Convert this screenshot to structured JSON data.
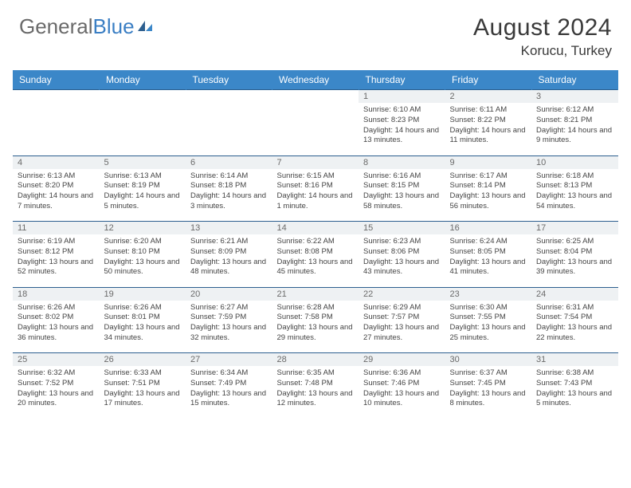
{
  "header": {
    "logo_general": "General",
    "logo_blue": "Blue",
    "month_title": "August 2024",
    "location": "Korucu, Turkey"
  },
  "colors": {
    "header_bar": "#3b87c8",
    "rule": "#2d5f8f",
    "daynum_bg": "#eef1f3",
    "logo_gray": "#6a6a6a",
    "logo_blue": "#3b7fc4"
  },
  "weekdays": [
    "Sunday",
    "Monday",
    "Tuesday",
    "Wednesday",
    "Thursday",
    "Friday",
    "Saturday"
  ],
  "weeks": [
    [
      null,
      null,
      null,
      null,
      {
        "n": "1",
        "sr": "6:10 AM",
        "ss": "8:23 PM",
        "dl": "14 hours and 13 minutes."
      },
      {
        "n": "2",
        "sr": "6:11 AM",
        "ss": "8:22 PM",
        "dl": "14 hours and 11 minutes."
      },
      {
        "n": "3",
        "sr": "6:12 AM",
        "ss": "8:21 PM",
        "dl": "14 hours and 9 minutes."
      }
    ],
    [
      {
        "n": "4",
        "sr": "6:13 AM",
        "ss": "8:20 PM",
        "dl": "14 hours and 7 minutes."
      },
      {
        "n": "5",
        "sr": "6:13 AM",
        "ss": "8:19 PM",
        "dl": "14 hours and 5 minutes."
      },
      {
        "n": "6",
        "sr": "6:14 AM",
        "ss": "8:18 PM",
        "dl": "14 hours and 3 minutes."
      },
      {
        "n": "7",
        "sr": "6:15 AM",
        "ss": "8:16 PM",
        "dl": "14 hours and 1 minute."
      },
      {
        "n": "8",
        "sr": "6:16 AM",
        "ss": "8:15 PM",
        "dl": "13 hours and 58 minutes."
      },
      {
        "n": "9",
        "sr": "6:17 AM",
        "ss": "8:14 PM",
        "dl": "13 hours and 56 minutes."
      },
      {
        "n": "10",
        "sr": "6:18 AM",
        "ss": "8:13 PM",
        "dl": "13 hours and 54 minutes."
      }
    ],
    [
      {
        "n": "11",
        "sr": "6:19 AM",
        "ss": "8:12 PM",
        "dl": "13 hours and 52 minutes."
      },
      {
        "n": "12",
        "sr": "6:20 AM",
        "ss": "8:10 PM",
        "dl": "13 hours and 50 minutes."
      },
      {
        "n": "13",
        "sr": "6:21 AM",
        "ss": "8:09 PM",
        "dl": "13 hours and 48 minutes."
      },
      {
        "n": "14",
        "sr": "6:22 AM",
        "ss": "8:08 PM",
        "dl": "13 hours and 45 minutes."
      },
      {
        "n": "15",
        "sr": "6:23 AM",
        "ss": "8:06 PM",
        "dl": "13 hours and 43 minutes."
      },
      {
        "n": "16",
        "sr": "6:24 AM",
        "ss": "8:05 PM",
        "dl": "13 hours and 41 minutes."
      },
      {
        "n": "17",
        "sr": "6:25 AM",
        "ss": "8:04 PM",
        "dl": "13 hours and 39 minutes."
      }
    ],
    [
      {
        "n": "18",
        "sr": "6:26 AM",
        "ss": "8:02 PM",
        "dl": "13 hours and 36 minutes."
      },
      {
        "n": "19",
        "sr": "6:26 AM",
        "ss": "8:01 PM",
        "dl": "13 hours and 34 minutes."
      },
      {
        "n": "20",
        "sr": "6:27 AM",
        "ss": "7:59 PM",
        "dl": "13 hours and 32 minutes."
      },
      {
        "n": "21",
        "sr": "6:28 AM",
        "ss": "7:58 PM",
        "dl": "13 hours and 29 minutes."
      },
      {
        "n": "22",
        "sr": "6:29 AM",
        "ss": "7:57 PM",
        "dl": "13 hours and 27 minutes."
      },
      {
        "n": "23",
        "sr": "6:30 AM",
        "ss": "7:55 PM",
        "dl": "13 hours and 25 minutes."
      },
      {
        "n": "24",
        "sr": "6:31 AM",
        "ss": "7:54 PM",
        "dl": "13 hours and 22 minutes."
      }
    ],
    [
      {
        "n": "25",
        "sr": "6:32 AM",
        "ss": "7:52 PM",
        "dl": "13 hours and 20 minutes."
      },
      {
        "n": "26",
        "sr": "6:33 AM",
        "ss": "7:51 PM",
        "dl": "13 hours and 17 minutes."
      },
      {
        "n": "27",
        "sr": "6:34 AM",
        "ss": "7:49 PM",
        "dl": "13 hours and 15 minutes."
      },
      {
        "n": "28",
        "sr": "6:35 AM",
        "ss": "7:48 PM",
        "dl": "13 hours and 12 minutes."
      },
      {
        "n": "29",
        "sr": "6:36 AM",
        "ss": "7:46 PM",
        "dl": "13 hours and 10 minutes."
      },
      {
        "n": "30",
        "sr": "6:37 AM",
        "ss": "7:45 PM",
        "dl": "13 hours and 8 minutes."
      },
      {
        "n": "31",
        "sr": "6:38 AM",
        "ss": "7:43 PM",
        "dl": "13 hours and 5 minutes."
      }
    ]
  ],
  "labels": {
    "sunrise": "Sunrise: ",
    "sunset": "Sunset: ",
    "daylight": "Daylight: "
  }
}
